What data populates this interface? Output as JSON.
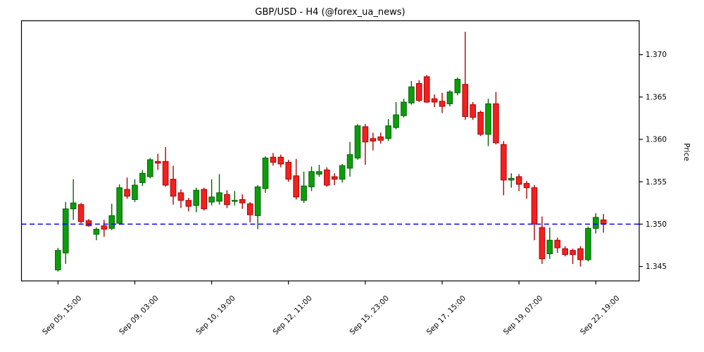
{
  "chart_data": {
    "type": "candlestick",
    "title": "GBP/USD - H4 (@forex_ua_news)",
    "xlabel": "",
    "ylabel": "Price",
    "grid": false,
    "legend": null,
    "ylim": [
      1.3433,
      1.374
    ],
    "xlim_index": [
      -4.75,
      75.65
    ],
    "y_ticks": [
      1.345,
      1.35,
      1.355,
      1.36,
      1.365,
      1.37
    ],
    "y_tick_labels": [
      "1.345",
      "1.350",
      "1.355",
      "1.360",
      "1.365",
      "1.370"
    ],
    "x_ticks": [
      {
        "index": 0,
        "label": "Sep 05, 15:00"
      },
      {
        "index": 10,
        "label": "Sep 09, 03:00"
      },
      {
        "index": 20,
        "label": "Sep 10, 19:00"
      },
      {
        "index": 30,
        "label": "Sep 12, 11:00"
      },
      {
        "index": 40,
        "label": "Sep 15, 23:00"
      },
      {
        "index": 50,
        "label": "Sep 17, 15:00"
      },
      {
        "index": 60,
        "label": "Sep 19, 07:00"
      },
      {
        "index": 70,
        "label": "Sep 22, 19:00"
      }
    ],
    "support_line": {
      "price": 1.35,
      "color": "#0000ff",
      "style": "dashed"
    },
    "colors": {
      "up_fill": "#0b9e0b",
      "up_edge": "#056105",
      "down_fill": "#f32020",
      "down_edge": "#ab0404",
      "axis": "#000000",
      "background": "#ffffff"
    },
    "candles_ohlc": [
      [
        1.3446,
        1.3472,
        1.3444,
        1.3469
      ],
      [
        1.3466,
        1.3526,
        1.3453,
        1.3518
      ],
      [
        1.3518,
        1.3553,
        1.3505,
        1.3525
      ],
      [
        1.3523,
        1.3525,
        1.3501,
        1.3503
      ],
      [
        1.3504,
        1.3506,
        1.3497,
        1.3498
      ],
      [
        1.3488,
        1.3496,
        1.3481,
        1.3494
      ],
      [
        1.3498,
        1.3505,
        1.3485,
        1.3494
      ],
      [
        1.3495,
        1.3524,
        1.3493,
        1.351
      ],
      [
        1.3501,
        1.3547,
        1.3499,
        1.3543
      ],
      [
        1.3541,
        1.3555,
        1.353,
        1.3533
      ],
      [
        1.3529,
        1.3553,
        1.3526,
        1.3546
      ],
      [
        1.3549,
        1.3564,
        1.3545,
        1.356
      ],
      [
        1.3556,
        1.3578,
        1.3554,
        1.3576
      ],
      [
        1.3574,
        1.3583,
        1.3564,
        1.3572
      ],
      [
        1.3574,
        1.3591,
        1.3544,
        1.3546
      ],
      [
        1.3553,
        1.3569,
        1.3523,
        1.3533
      ],
      [
        1.3537,
        1.3541,
        1.3519,
        1.3528
      ],
      [
        1.3528,
        1.3531,
        1.3515,
        1.3521
      ],
      [
        1.3522,
        1.3543,
        1.3514,
        1.354
      ],
      [
        1.3541,
        1.3543,
        1.3516,
        1.3518
      ],
      [
        1.3526,
        1.3553,
        1.3522,
        1.3532
      ],
      [
        1.3527,
        1.3559,
        1.3523,
        1.3537
      ],
      [
        1.3535,
        1.354,
        1.3519,
        1.3523
      ],
      [
        1.3527,
        1.3539,
        1.3522,
        1.3528
      ],
      [
        1.3529,
        1.3535,
        1.3518,
        1.3525
      ],
      [
        1.3524,
        1.3526,
        1.3502,
        1.3511
      ],
      [
        1.351,
        1.3546,
        1.3494,
        1.3544
      ],
      [
        1.3542,
        1.358,
        1.3537,
        1.3578
      ],
      [
        1.3579,
        1.3584,
        1.3569,
        1.3573
      ],
      [
        1.3579,
        1.3582,
        1.3567,
        1.3571
      ],
      [
        1.3573,
        1.3576,
        1.355,
        1.3553
      ],
      [
        1.3557,
        1.3577,
        1.3529,
        1.3532
      ],
      [
        1.3528,
        1.3562,
        1.3525,
        1.3545
      ],
      [
        1.3544,
        1.3568,
        1.3539,
        1.3562
      ],
      [
        1.3559,
        1.357,
        1.3556,
        1.3562
      ],
      [
        1.3564,
        1.3567,
        1.3544,
        1.3546
      ],
      [
        1.3556,
        1.356,
        1.3546,
        1.3553
      ],
      [
        1.3553,
        1.3571,
        1.3549,
        1.3569
      ],
      [
        1.3566,
        1.3597,
        1.3556,
        1.3582
      ],
      [
        1.3578,
        1.3618,
        1.3576,
        1.3616
      ],
      [
        1.3615,
        1.3618,
        1.357,
        1.3597
      ],
      [
        1.3601,
        1.3608,
        1.3587,
        1.3598
      ],
      [
        1.3603,
        1.3608,
        1.3595,
        1.3599
      ],
      [
        1.3601,
        1.3624,
        1.3598,
        1.3616
      ],
      [
        1.3614,
        1.3644,
        1.3612,
        1.3629
      ],
      [
        1.3628,
        1.3648,
        1.3626,
        1.3644
      ],
      [
        1.3643,
        1.3669,
        1.3641,
        1.3662
      ],
      [
        1.3666,
        1.367,
        1.3644,
        1.3646
      ],
      [
        1.3674,
        1.3676,
        1.3643,
        1.3644
      ],
      [
        1.3648,
        1.3653,
        1.3638,
        1.3644
      ],
      [
        1.3645,
        1.3655,
        1.3631,
        1.3639
      ],
      [
        1.3642,
        1.3658,
        1.3639,
        1.3656
      ],
      [
        1.3655,
        1.3673,
        1.3652,
        1.3671
      ],
      [
        1.3665,
        1.3727,
        1.3623,
        1.3627
      ],
      [
        1.3641,
        1.3644,
        1.3623,
        1.3626
      ],
      [
        1.3632,
        1.3634,
        1.3604,
        1.3606
      ],
      [
        1.3606,
        1.3648,
        1.3592,
        1.3642
      ],
      [
        1.3642,
        1.3656,
        1.3594,
        1.3596
      ],
      [
        1.3594,
        1.3598,
        1.3534,
        1.3552
      ],
      [
        1.3552,
        1.356,
        1.3543,
        1.3554
      ],
      [
        1.3556,
        1.3559,
        1.3539,
        1.3547
      ],
      [
        1.3548,
        1.3551,
        1.353,
        1.3543
      ],
      [
        1.3543,
        1.3546,
        1.3481,
        1.35
      ],
      [
        1.3496,
        1.3509,
        1.3453,
        1.3459
      ],
      [
        1.3465,
        1.3496,
        1.3459,
        1.3481
      ],
      [
        1.3481,
        1.3484,
        1.3466,
        1.3472
      ],
      [
        1.3471,
        1.3474,
        1.3462,
        1.3464
      ],
      [
        1.3469,
        1.3471,
        1.3453,
        1.3464
      ],
      [
        1.3471,
        1.3474,
        1.345,
        1.3458
      ],
      [
        1.3458,
        1.3497,
        1.3456,
        1.3495
      ],
      [
        1.3495,
        1.3513,
        1.3489,
        1.3508
      ],
      [
        1.3505,
        1.3512,
        1.349,
        1.35
      ]
    ]
  }
}
